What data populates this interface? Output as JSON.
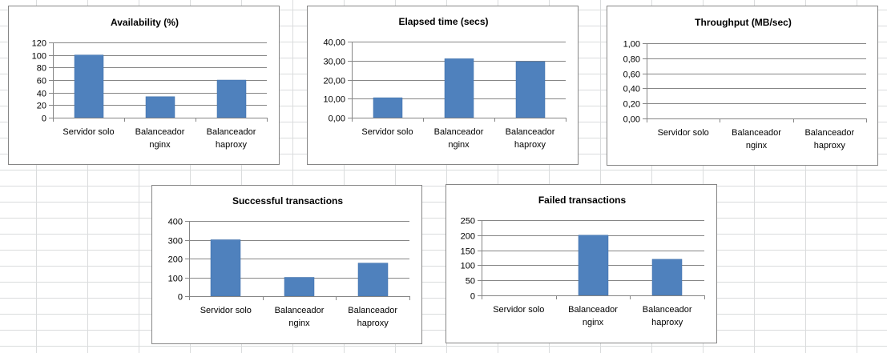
{
  "chart_data": [
    {
      "type": "bar",
      "title": "Availability (%)",
      "categories": [
        [
          "Servidor solo"
        ],
        [
          "Balanceador",
          "nginx"
        ],
        [
          "Balanceador",
          "haproxy"
        ]
      ],
      "values": [
        100,
        33.5,
        60
      ],
      "ylim": [
        0,
        120
      ],
      "yticks": [
        "0",
        "20",
        "40",
        "60",
        "80",
        "100",
        "120"
      ],
      "grid": true,
      "color": "#4f81bd"
    },
    {
      "type": "bar",
      "title": "Elapsed time (secs)",
      "categories": [
        [
          "Servidor solo"
        ],
        [
          "Balanceador",
          "nginx"
        ],
        [
          "Balanceador",
          "haproxy"
        ]
      ],
      "values": [
        10.5,
        31,
        29.5
      ],
      "ylim": [
        0,
        40
      ],
      "yticks": [
        "0,00",
        "10,00",
        "20,00",
        "30,00",
        "40,00"
      ],
      "grid": true,
      "color": "#4f81bd"
    },
    {
      "type": "bar",
      "title": "Throughput (MB/sec)",
      "categories": [
        [
          "Servidor solo"
        ],
        [
          "Balanceador",
          "nginx"
        ],
        [
          "Balanceador",
          "haproxy"
        ]
      ],
      "values": [
        0,
        0,
        0
      ],
      "ylim": [
        0,
        1
      ],
      "yticks": [
        "0,00",
        "0,20",
        "0,40",
        "0,60",
        "0,80",
        "1,00"
      ],
      "grid": true,
      "color": "#4f81bd"
    },
    {
      "type": "bar",
      "title": "Successful transactions",
      "categories": [
        [
          "Servidor solo"
        ],
        [
          "Balanceador",
          "nginx"
        ],
        [
          "Balanceador",
          "haproxy"
        ]
      ],
      "values": [
        300,
        100,
        176
      ],
      "ylim": [
        0,
        400
      ],
      "yticks": [
        "0",
        "100",
        "200",
        "300",
        "400"
      ],
      "grid": true,
      "color": "#4f81bd"
    },
    {
      "type": "bar",
      "title": "Failed transactions",
      "categories": [
        [
          "Servidor solo"
        ],
        [
          "Balanceador",
          "nginx"
        ],
        [
          "Balanceador",
          "haproxy"
        ]
      ],
      "values": [
        0,
        200,
        120
      ],
      "ylim": [
        0,
        250
      ],
      "yticks": [
        "0",
        "50",
        "100",
        "150",
        "200",
        "250"
      ],
      "grid": true,
      "color": "#4f81bd"
    }
  ]
}
